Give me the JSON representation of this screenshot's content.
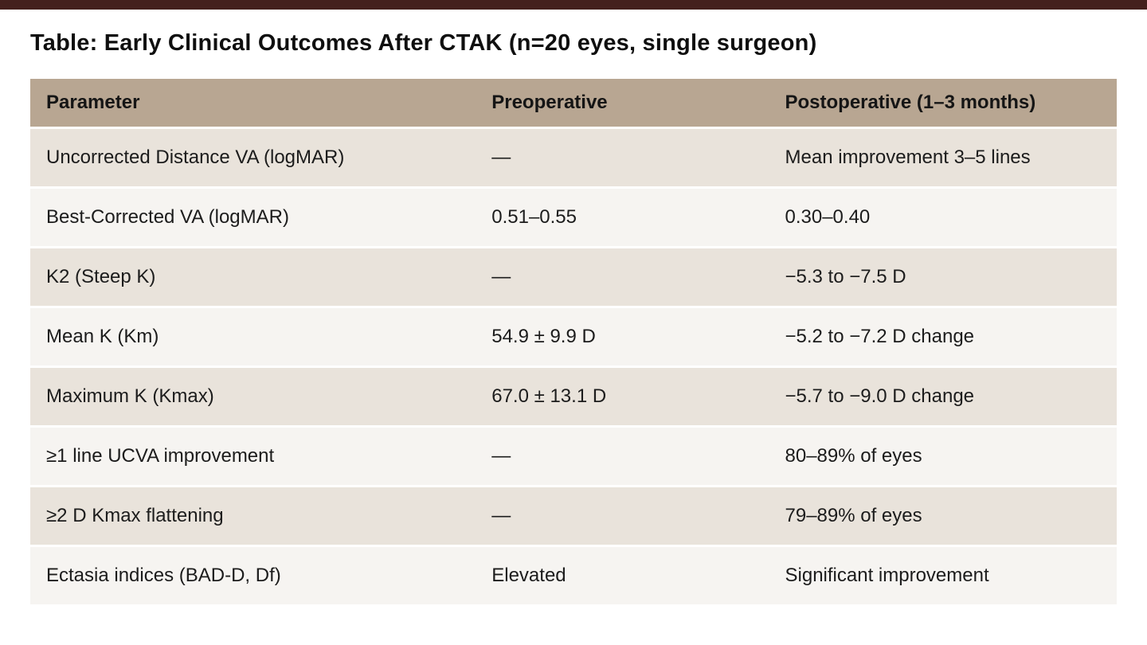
{
  "page": {
    "title": "Table: Early Clinical Outcomes After CTAK (n=20 eyes, single surgeon)"
  },
  "colors": {
    "top_bar": "#44201d",
    "header_bg": "#b8a692",
    "row_odd": "#e9e3db",
    "row_even": "#f6f4f1"
  },
  "chart_data": {
    "type": "table",
    "title": "Table: Early Clinical Outcomes After CTAK (n=20 eyes, single surgeon)",
    "columns": [
      "Parameter",
      "Preoperative",
      "Postoperative (1–3 months)"
    ],
    "rows": [
      [
        "Uncorrected Distance VA (logMAR)",
        "—",
        "Mean improvement 3–5 lines"
      ],
      [
        "Best-Corrected VA (logMAR)",
        "0.51–0.55",
        "0.30–0.40"
      ],
      [
        "K2 (Steep K)",
        "—",
        "−5.3 to −7.5 D"
      ],
      [
        "Mean K (Km)",
        "54.9 ± 9.9 D",
        "−5.2 to −7.2 D change"
      ],
      [
        "Maximum K (Kmax)",
        "67.0 ± 13.1 D",
        "−5.7 to −9.0 D change"
      ],
      [
        "≥1 line UCVA improvement",
        "—",
        "80–89% of eyes"
      ],
      [
        "≥2 D Kmax flattening",
        "—",
        "79–89% of eyes"
      ],
      [
        "Ectasia indices (BAD-D, Df)",
        "Elevated",
        "Significant improvement"
      ]
    ]
  }
}
